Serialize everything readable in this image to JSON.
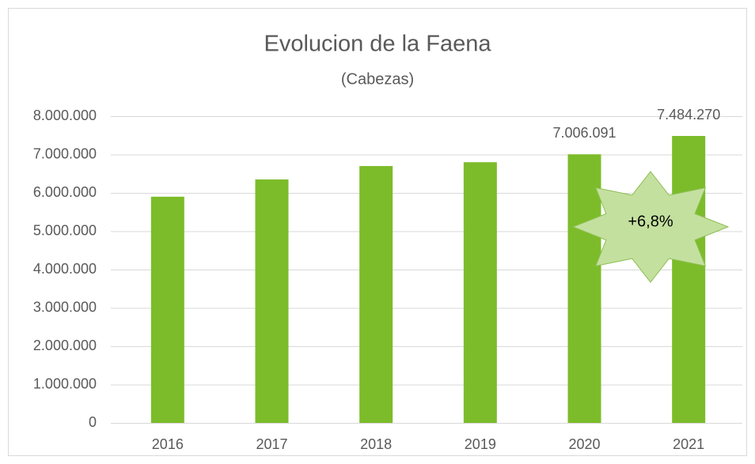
{
  "chart_data": {
    "type": "bar",
    "title": "Evolucion de la Faena",
    "subtitle": "(Cabezas)",
    "categories": [
      "2016",
      "2017",
      "2018",
      "2019",
      "2020",
      "2021"
    ],
    "values": [
      5900000,
      6350000,
      6700000,
      6800000,
      7006091,
      7484270
    ],
    "value_labels": [
      null,
      null,
      null,
      null,
      "7.006.091",
      "7.484.270"
    ],
    "color": "#7cbc2a",
    "ylim": [
      0,
      8000000
    ],
    "yticks": [
      0,
      {
        "value": 1000000,
        "label": "1.000.000"
      },
      {
        "value": 2000000,
        "label": "2.000.000"
      },
      {
        "value": 3000000,
        "label": "3.000.000"
      },
      {
        "value": 4000000,
        "label": "4.000.000"
      },
      {
        "value": 5000000,
        "label": "5.000.000"
      },
      {
        "value": 6000000,
        "label": "6.000.000"
      },
      {
        "value": 7000000,
        "label": "7.000.000"
      },
      {
        "value": 8000000,
        "label": "8.000.000"
      }
    ],
    "grid": true,
    "annotations": [
      {
        "text": "+6,8%"
      }
    ]
  }
}
